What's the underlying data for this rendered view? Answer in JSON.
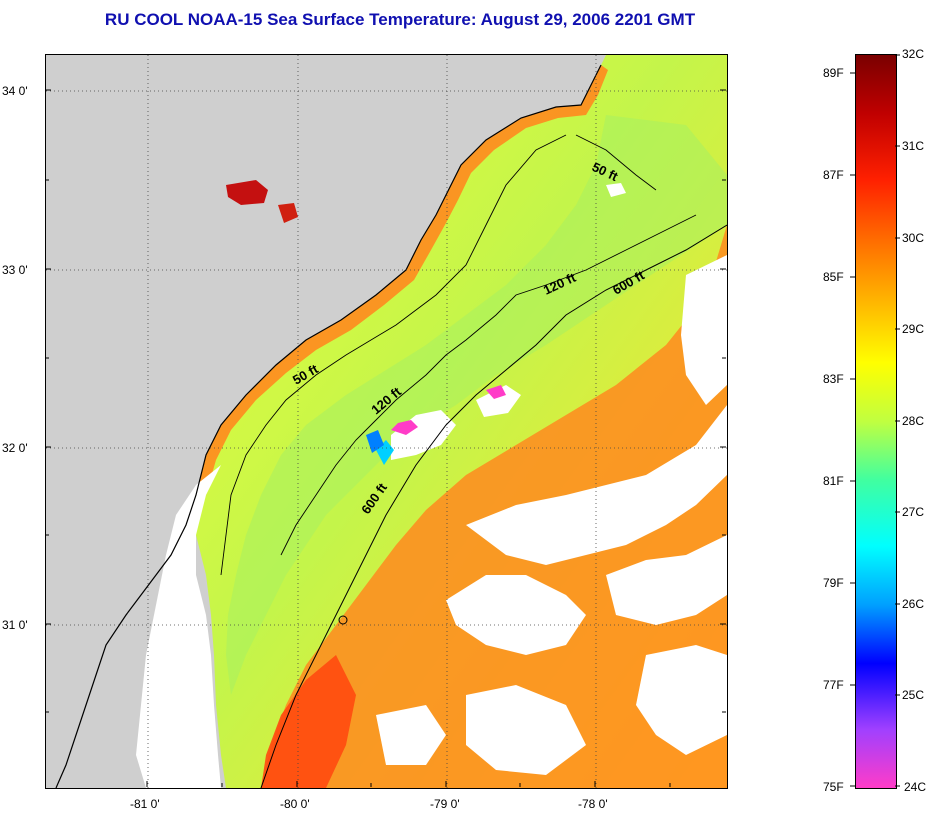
{
  "title": "RU COOL  NOAA-15  Sea Surface Temperature:  August 29, 2006 2201 GMT",
  "axes": {
    "lat_labels": [
      "34 0'",
      "33 0'",
      "32 0'",
      "31 0'"
    ],
    "lon_labels": [
      "-81 0'",
      "-80 0'",
      "-79 0'",
      "-78 0'"
    ]
  },
  "contours": {
    "c50_a": "50 ft",
    "c50_b": "50 ft",
    "c120_a": "120 ft",
    "c120_b": "120 ft",
    "c600_a": "600 ft",
    "c600_b": "600 ft"
  },
  "colorbar": {
    "celsius": [
      "32C",
      "31C",
      "30C",
      "29C",
      "28C",
      "27C",
      "26C",
      "25C",
      "24C"
    ],
    "fahrenheit": [
      "89F",
      "87F",
      "85F",
      "83F",
      "81F",
      "79F",
      "77F",
      "75F"
    ],
    "colors": [
      "#ff3cc8",
      "#a040ff",
      "#0000ff",
      "#00a0ff",
      "#00ffff",
      "#40ffa0",
      "#c0ff40",
      "#ffff00",
      "#ffb000",
      "#ff6a00",
      "#ff2000",
      "#c00000",
      "#7a0000"
    ]
  },
  "legend_colors": {
    "land": "#cfcfcf",
    "cloud": "#ffffff",
    "warm_water": "#ff8a1e",
    "mid_water": "#ffee30",
    "cool_water": "#a8f060"
  }
}
